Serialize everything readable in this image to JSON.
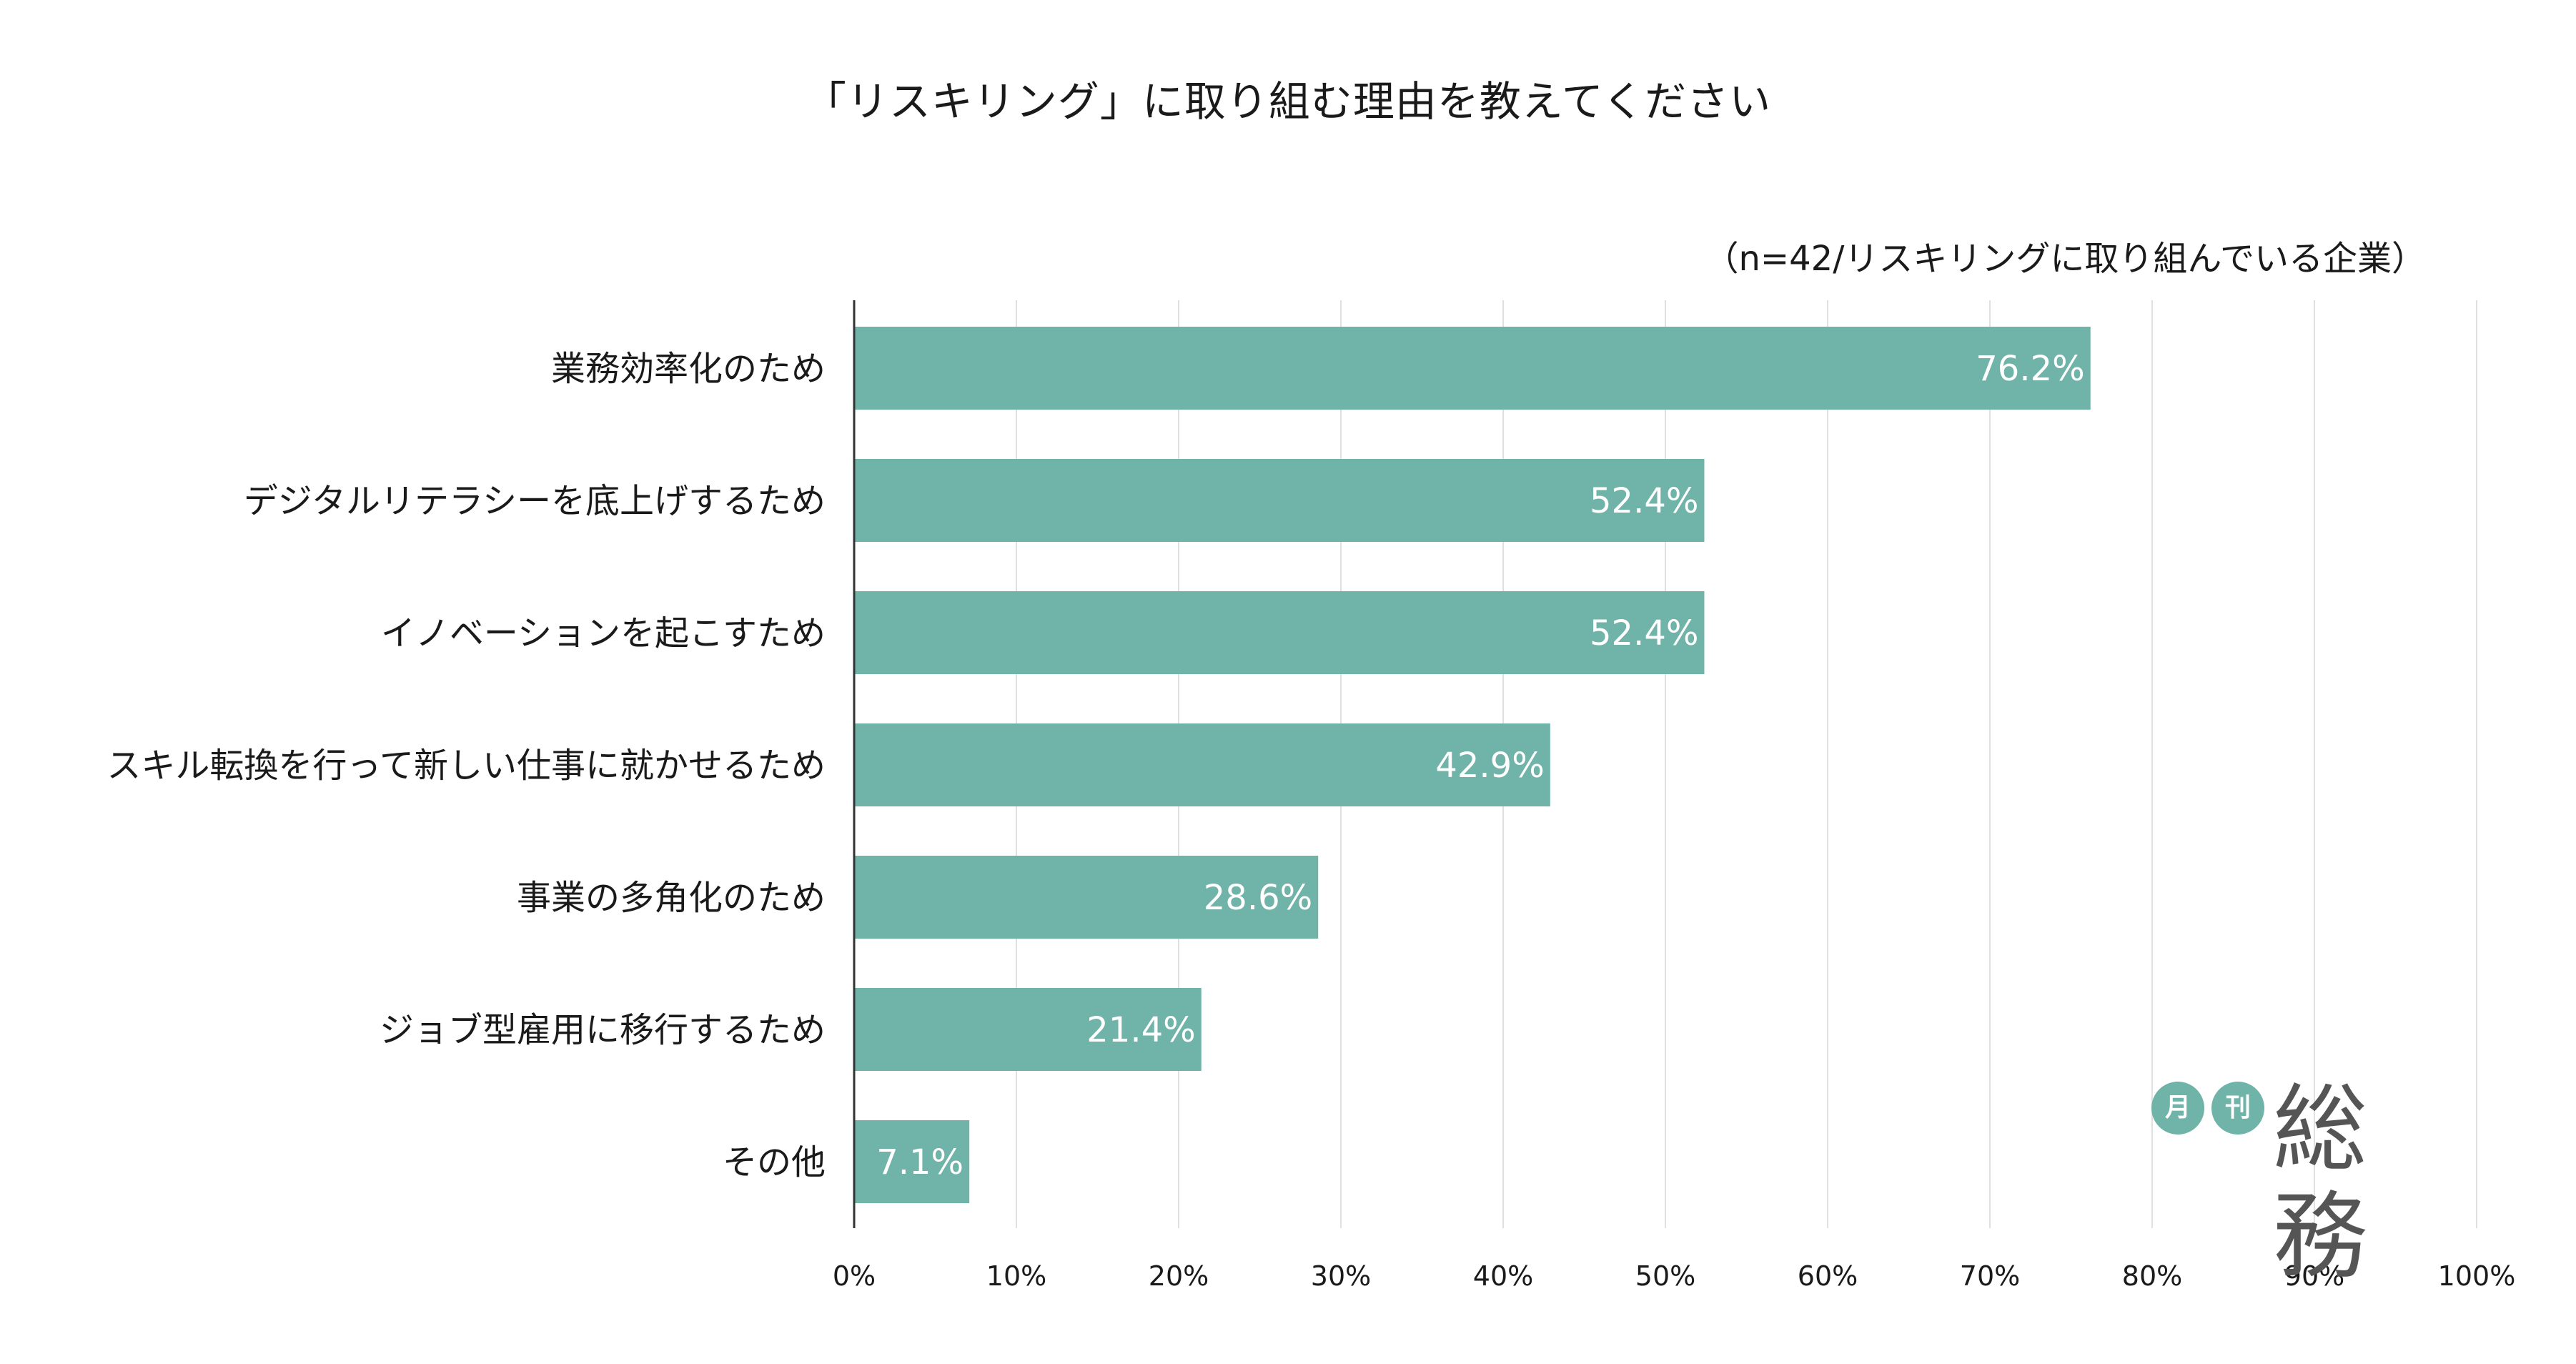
{
  "chart_data": {
    "type": "bar",
    "orientation": "horizontal",
    "title": "「リスキリング」に取り組む理由を教えてください",
    "subtitle": "（n=42/リスキリングに取り組んでいる企業）",
    "categories": [
      "業務効率化のため",
      "デジタルリテラシーを底上げするため",
      "イノベーションを起こすため",
      "スキル転換を行って新しい仕事に就かせるため",
      "事業の多角化のため",
      "ジョブ型雇用に移行するため",
      "その他"
    ],
    "values": [
      76.2,
      52.4,
      52.4,
      42.9,
      28.6,
      21.4,
      7.1
    ],
    "value_labels": [
      "76.2%",
      "52.4%",
      "52.4%",
      "42.9%",
      "28.6%",
      "21.4%",
      "7.1%"
    ],
    "xlim": [
      0,
      100
    ],
    "x_ticks": [
      "0%",
      "10%",
      "20%",
      "30%",
      "40%",
      "50%",
      "60%",
      "70%",
      "80%",
      "90%",
      "100%"
    ],
    "grid": "vertical",
    "bar_color": "#6fb3a9",
    "grid_color": "#e0e0e0",
    "axis_color": "#333333"
  },
  "logo": {
    "badge_1": "月",
    "badge_2": "刊",
    "text": "総務",
    "badge_color": "#6fb3a9"
  }
}
